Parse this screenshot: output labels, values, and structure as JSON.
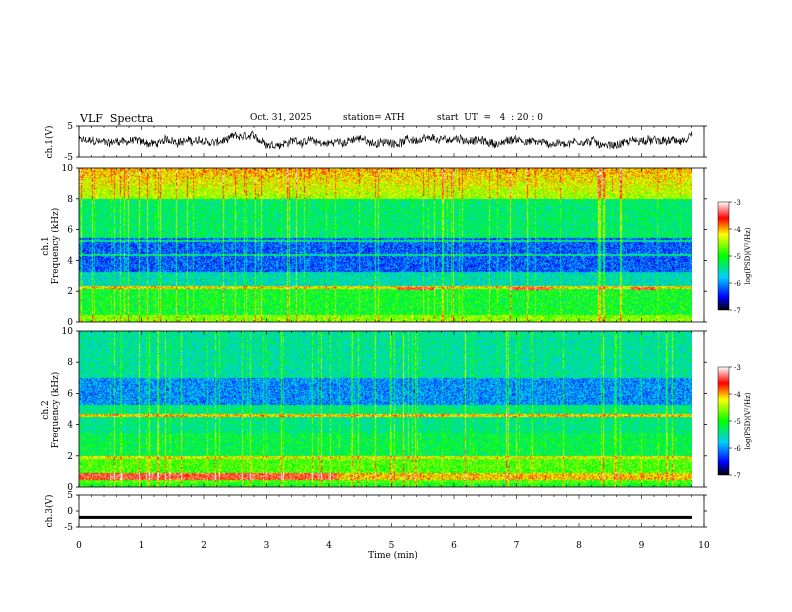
{
  "header": {
    "title": "VLF  Spectra",
    "date": "Oct. 31, 2025",
    "station": "station= ATH",
    "start_time": "start  UT  =   4  : 20 : 0"
  },
  "chart_data": [
    {
      "type": "line",
      "name": "ch1-waveform",
      "ylabel": "ch.1(V)",
      "ylim": [
        -5,
        5
      ],
      "yticks": [
        "5",
        "-5"
      ],
      "xlim": [
        0,
        10
      ],
      "description_values": {
        "min": -3,
        "max": 4,
        "typical_center": 0
      }
    },
    {
      "type": "heatmap",
      "name": "ch1-spectrogram",
      "ylabel": "ch.1\nFrequency  (kHz)",
      "ylabel_line1": "ch.1",
      "ylabel_line2": "Frequency  (kHz)",
      "ylim": [
        0,
        10
      ],
      "yticks": [
        "0",
        "2",
        "4",
        "6",
        "8",
        "10"
      ],
      "xlim": [
        0,
        9.83
      ],
      "colorbar": {
        "label": "log(PSD) (V²/Hz)",
        "min": -7,
        "max": -3,
        "ticks": [
          "-3",
          "-4",
          "-5",
          "-6",
          "-7"
        ]
      }
    },
    {
      "type": "heatmap",
      "name": "ch2-spectrogram",
      "ylabel_line1": "ch.2",
      "ylabel_line2": "Frequency  (kHz)",
      "ylim": [
        0,
        10
      ],
      "yticks": [
        "0",
        "2",
        "4",
        "6",
        "8",
        "10"
      ],
      "xlim": [
        0,
        9.83
      ],
      "colorbar": {
        "label": "log(PSD) (V²/Hz)",
        "min": -7,
        "max": -3,
        "ticks": [
          "-3",
          "-4",
          "-5",
          "-6",
          "-7"
        ]
      }
    },
    {
      "type": "line",
      "name": "ch3-waveform",
      "ylabel": "ch.3(V)",
      "ylim": [
        -5,
        5
      ],
      "yticks": [
        "5",
        "0",
        "-5"
      ],
      "xlim": [
        0,
        10
      ],
      "constant_value": -2
    }
  ],
  "x_axis": {
    "label": "Time  (min)",
    "ticks": [
      "0",
      "1",
      "2",
      "3",
      "4",
      "5",
      "6",
      "7",
      "8",
      "9",
      "10"
    ],
    "range": [
      0,
      10
    ]
  },
  "colorbar_label_text": "log(PSD)(V²/Hz)",
  "colors": {
    "background": "#ffffff",
    "axes": "#000000",
    "waveform": "#000000"
  }
}
